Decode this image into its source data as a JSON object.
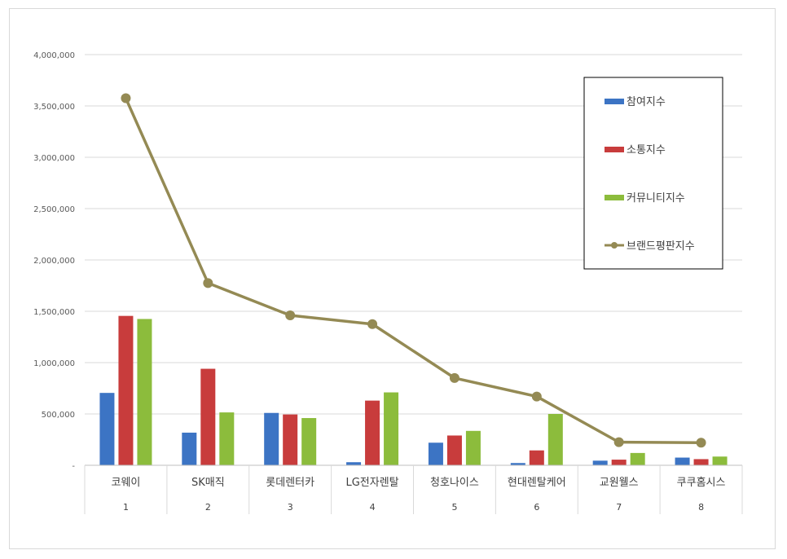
{
  "chart_data": {
    "type": "bar",
    "title": "",
    "xlabel": "",
    "ylabel": "",
    "ylim": [
      0,
      4000000
    ],
    "y_ticks": [
      "-",
      "500,000",
      "1,000,000",
      "1,500,000",
      "2,000,000",
      "2,500,000",
      "3,000,000",
      "3,500,000",
      "4,000,000"
    ],
    "y_tick_values": [
      0,
      500000,
      1000000,
      1500000,
      2000000,
      2500000,
      3000000,
      3500000,
      4000000
    ],
    "categories": [
      "코웨이",
      "SK매직",
      "롯데렌터카",
      "LG전자렌탈",
      "청호나이스",
      "현대렌탈케어",
      "교원웰스",
      "쿠쿠홈시스"
    ],
    "ranks": [
      "1",
      "2",
      "3",
      "4",
      "5",
      "6",
      "7",
      "8"
    ],
    "grid": true,
    "legend_position": "top-right",
    "series": [
      {
        "name": "참여지수",
        "kind": "bar",
        "color": "#3c74c4",
        "values": [
          705000,
          318000,
          510000,
          30000,
          220000,
          22000,
          45000,
          75000
        ]
      },
      {
        "name": "소통지수",
        "kind": "bar",
        "color": "#c83c3c",
        "values": [
          1455000,
          940000,
          495000,
          630000,
          290000,
          145000,
          55000,
          60000
        ]
      },
      {
        "name": "커뮤니티지수",
        "kind": "bar",
        "color": "#8cbc3c",
        "values": [
          1425000,
          515000,
          460000,
          710000,
          335000,
          500000,
          120000,
          85000
        ]
      },
      {
        "name": "브랜드평판지수",
        "kind": "line",
        "color": "#948a54",
        "values": [
          3575000,
          1775000,
          1460000,
          1375000,
          850000,
          670000,
          225000,
          220000
        ]
      }
    ]
  }
}
